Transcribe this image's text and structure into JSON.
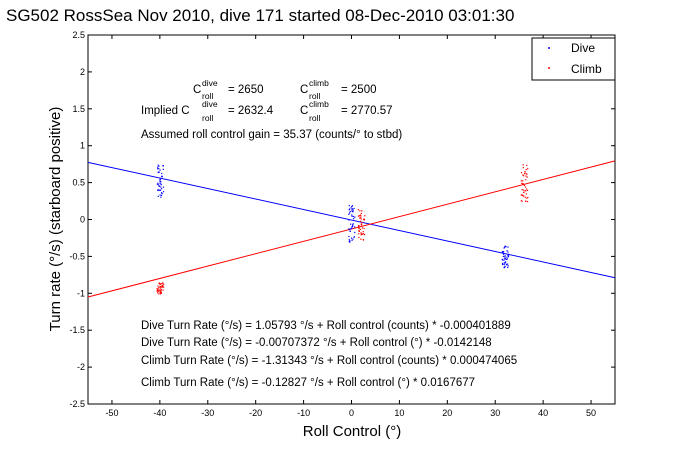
{
  "chart_data": {
    "type": "scatter",
    "title": "SG502 RossSea Nov 2010, dive 171 started 08-Dec-2010 03:01:30",
    "xlabel": "Roll Control (°)",
    "ylabel": "Turn rate (°/s) (starboard positive)",
    "xlim": [
      -55,
      55
    ],
    "ylim": [
      -2.5,
      2.5
    ],
    "xticks": [
      -50,
      -40,
      -30,
      -20,
      -10,
      0,
      10,
      20,
      30,
      40,
      50
    ],
    "yticks": [
      -2.5,
      -2,
      -1.5,
      -1,
      -0.5,
      0,
      0.5,
      1,
      1.5,
      2,
      2.5
    ],
    "legend": {
      "placement": "top-right",
      "entries": [
        "Dive",
        "Climb"
      ]
    },
    "series": [
      {
        "name": "Dive",
        "color": "#0000ff",
        "fit": {
          "intercept": -0.00707372,
          "slope": -0.0142148
        },
        "clusters": [
          {
            "x": -40,
            "y_range": [
              0.3,
              0.75
            ]
          },
          {
            "x": 0,
            "y_range": [
              -0.3,
              0.2
            ]
          },
          {
            "x": 32,
            "y_range": [
              -0.65,
              -0.35
            ]
          }
        ]
      },
      {
        "name": "Climb",
        "color": "#ff0000",
        "fit": {
          "intercept": -0.12827,
          "slope": 0.0167677
        },
        "clusters": [
          {
            "x": -40,
            "y_range": [
              -1.0,
              -0.85
            ]
          },
          {
            "x": 2,
            "y_range": [
              -0.3,
              0.15
            ]
          },
          {
            "x": 36,
            "y_range": [
              0.25,
              0.75
            ]
          }
        ]
      }
    ],
    "annotations": {
      "c_dive_label": "C",
      "c_dive_super": "dive",
      "c_dive_sub": "roll",
      "c_dive_value": "= 2650",
      "c_climb_label": "C",
      "c_climb_super": "climb",
      "c_climb_sub": "roll",
      "c_climb_value": "= 2500",
      "implied_label": "Implied C",
      "implied_dive_value": "= 2632.4",
      "implied_climb_value": "= 2770.57",
      "gain": "Assumed roll control gain = 35.37 (counts/° to stbd)",
      "fit_lines": [
        "Dive Turn Rate (°/s) = 1.05793 °/s + Roll control (counts) * -0.000401889",
        "Dive Turn Rate (°/s) = -0.00707372 °/s + Roll control (°) * -0.0142148",
        "Climb Turn Rate (°/s) = -1.31343 °/s + Roll control (counts) * 0.000474065",
        "Climb Turn Rate (°/s) = -0.12827 °/s + Roll control (°) * 0.0167677"
      ]
    }
  }
}
